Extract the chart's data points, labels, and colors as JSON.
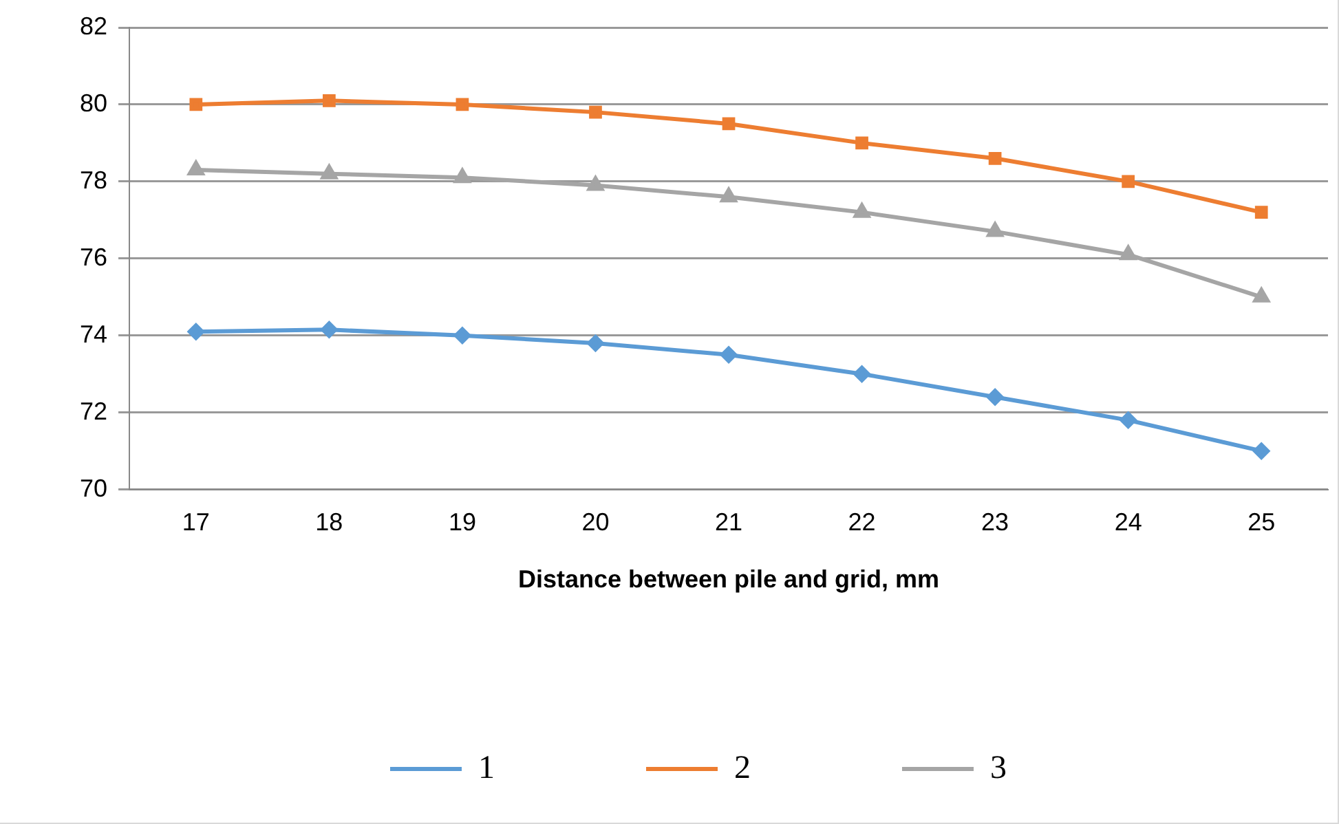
{
  "chart_data": {
    "type": "line",
    "xlabel": "Distance between pile and grid, mm",
    "categories": [
      "17",
      "18",
      "19",
      "20",
      "21",
      "22",
      "23",
      "24",
      "25"
    ],
    "ylim": [
      70,
      82
    ],
    "yticks": [
      70,
      72,
      74,
      76,
      78,
      80,
      82
    ],
    "grid": "y",
    "legend": "bottom",
    "series": [
      {
        "name": "1",
        "color": "#5b9bd5",
        "marker": "diamond",
        "values": [
          74.1,
          74.15,
          74.0,
          73.8,
          73.5,
          73.0,
          72.4,
          71.8,
          71.0
        ]
      },
      {
        "name": "2",
        "color": "#ed7d31",
        "marker": "square",
        "values": [
          80.0,
          80.1,
          80.0,
          79.8,
          79.5,
          79.0,
          78.6,
          78.0,
          77.2
        ]
      },
      {
        "name": "3",
        "color": "#a5a5a5",
        "marker": "triangle",
        "values": [
          78.3,
          78.2,
          78.1,
          77.9,
          77.6,
          77.2,
          76.7,
          76.1,
          75.0
        ]
      }
    ]
  }
}
